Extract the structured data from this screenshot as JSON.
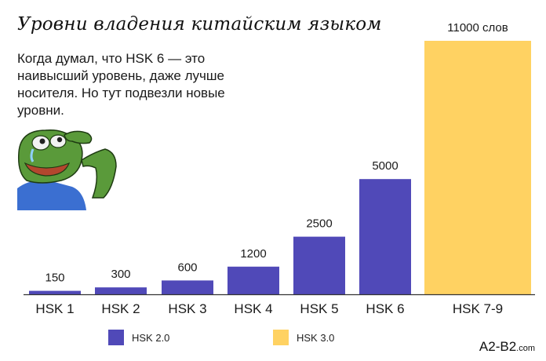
{
  "colors": {
    "hsk2": "#5049b8",
    "hsk3": "#ffd262",
    "axis": "#333333",
    "text": "#1a1a1a"
  },
  "caption": "Когда думал, что HSK 6 — это наивысший уровень, даже лучше носителя. Но тут подвезли новые уровни.",
  "meme": {
    "icon": "crying-frog-icon"
  },
  "site": {
    "name": "A2-B2",
    "suffix": ".com"
  },
  "chart_data": {
    "type": "bar",
    "title": "Уровни владения китайским языком",
    "categories": [
      "HSK 1",
      "HSK 2",
      "HSK 3",
      "HSK 4",
      "HSK 5",
      "HSK 6",
      "HSK 7-9"
    ],
    "series": [
      {
        "name": "HSK 2.0",
        "values": [
          150,
          300,
          600,
          1200,
          2500,
          5000,
          null
        ]
      },
      {
        "name": "HSK 3.0",
        "values": [
          null,
          null,
          null,
          null,
          null,
          null,
          11000
        ]
      }
    ],
    "data_labels": [
      "150",
      "300",
      "600",
      "1200",
      "2500",
      "5000",
      "11000 слов"
    ],
    "ylim": [
      0,
      11000
    ],
    "xlabel": "",
    "ylabel": "",
    "grid": false,
    "legend_position": "bottom"
  }
}
